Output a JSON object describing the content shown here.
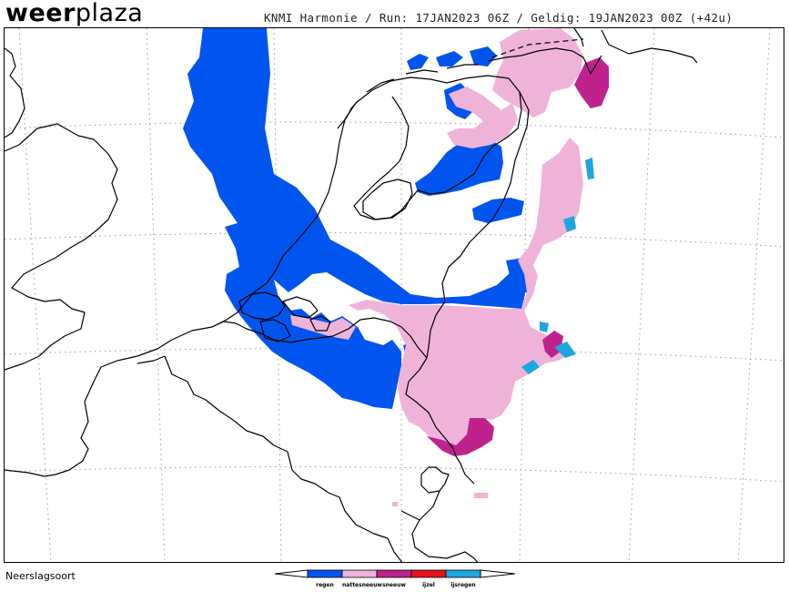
{
  "brand": {
    "part1": "weer",
    "part2": "plaza"
  },
  "header": {
    "model": "KNMI Harmonie",
    "run_label": "Run:",
    "run": "17JAN2023 06Z",
    "valid_label": "Geldig:",
    "valid": "19JAN2023 00Z (+42u)",
    "separator": "/"
  },
  "footer": {
    "title": "Neerslagsoort"
  },
  "legend": {
    "items": [
      {
        "label": "regen",
        "color": "#0055ee"
      },
      {
        "label": "nattesneeuw",
        "color": "#efb3d9"
      },
      {
        "label": "sneeuw",
        "color": "#c0228c"
      },
      {
        "label": "ijzel",
        "color": "#e8101a"
      },
      {
        "label": "ijsregen",
        "color": "#1ea6e0"
      }
    ]
  },
  "map": {
    "type": "precipitation-type",
    "region": "Netherlands, Belgium and surroundings",
    "colors": {
      "rain": "#0055ee",
      "wet_snow": "#efb3d9",
      "snow": "#c0228c",
      "freezing_rain": "#1ea6e0"
    }
  }
}
